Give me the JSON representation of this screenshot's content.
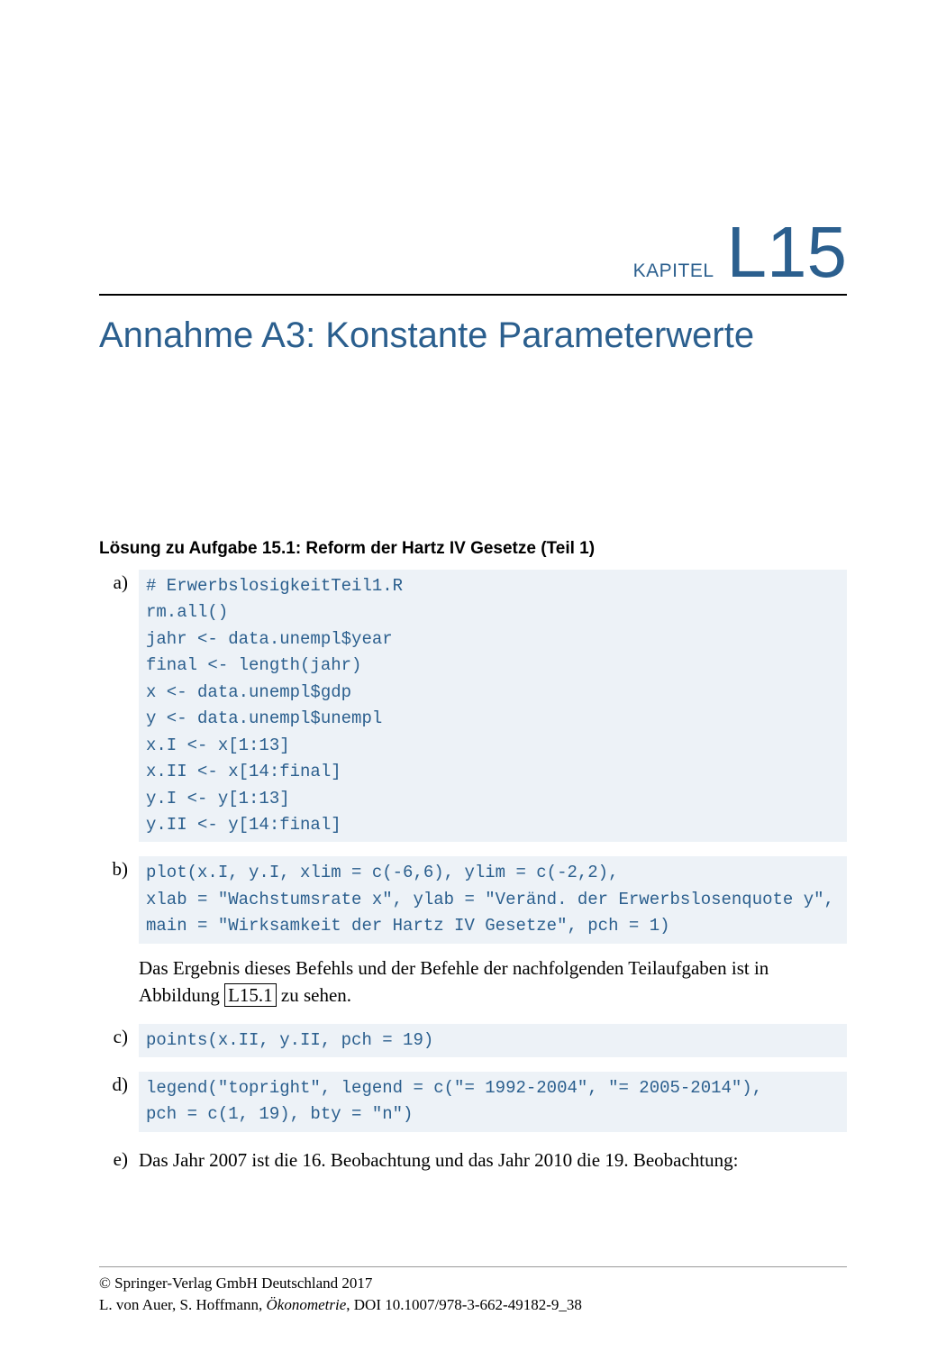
{
  "chapter": {
    "label": "KAPITEL",
    "number": "L15",
    "title": "Annahme A3: Konstante Parameterwerte"
  },
  "solution": {
    "heading_prefix": "Lösung zu Aufgabe 15.1:",
    "heading_title": "Reform der Hartz IV Gesetze (Teil 1)"
  },
  "items": {
    "a": {
      "label": "a)",
      "code": "# ErwerbslosigkeitTeil1.R\nrm.all()\njahr <- data.unempl$year\nfinal <- length(jahr)\nx <- data.unempl$gdp\ny <- data.unempl$unempl\nx.I <- x[1:13]\nx.II <- x[14:final]\ny.I <- y[1:13]\ny.II <- y[14:final]"
    },
    "b": {
      "label": "b)",
      "code": "plot(x.I, y.I, xlim = c(-6,6), ylim = c(-2,2),\nxlab = \"Wachstumsrate x\", ylab = \"Veränd. der Erwerbslosenquote y\",\nmain = \"Wirksamkeit der Hartz IV Gesetze\", pch = 1)",
      "text_before": "Das Ergebnis dieses Befehls und der Befehle der nachfolgenden Teilaufgaben ist in Abbildung ",
      "ref": "L15.1",
      "text_after": " zu sehen."
    },
    "c": {
      "label": "c)",
      "code": "points(x.II, y.II, pch = 19)"
    },
    "d": {
      "label": "d)",
      "code": "legend(\"topright\", legend = c(\"= 1992-2004\", \"= 2005-2014\"),\npch = c(1, 19), bty = \"n\")"
    },
    "e": {
      "label": "e)",
      "text": "Das Jahr 2007 ist die 16. Beobachtung und das Jahr 2010 die 19. Beobachtung:"
    }
  },
  "footer": {
    "copyright": "© Springer-Verlag GmbH Deutschland 2017",
    "citation_authors": "L. von Auer, S. Hoffmann, ",
    "citation_title": "Ökonometrie",
    "citation_doi": ", DOI 10.1007/978-3-662-49182-9_38"
  },
  "colors": {
    "heading_color": "#2b5f8e",
    "code_bg": "#edf2f7",
    "code_color": "#2b5f8e",
    "text_color": "#000000",
    "background": "#ffffff"
  },
  "typography": {
    "chapter_number_fontsize": 80,
    "chapter_title_fontsize": 40,
    "chapter_label_fontsize": 21,
    "solution_heading_fontsize": 19,
    "code_fontsize": 19,
    "body_fontsize": 21,
    "footer_fontsize": 17
  }
}
